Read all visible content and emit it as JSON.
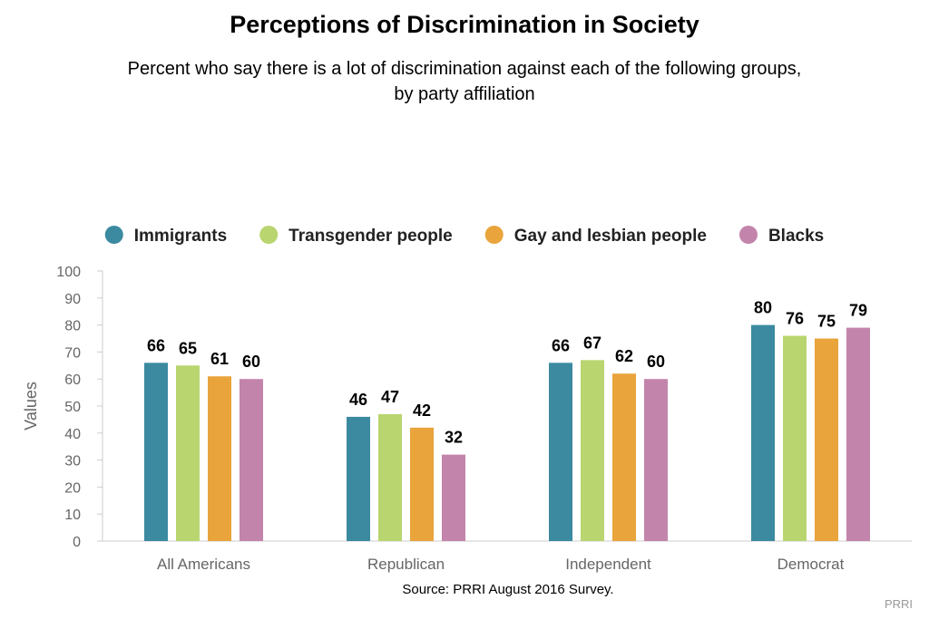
{
  "chart_data": {
    "type": "bar",
    "title": "Perceptions of Discrimination in Society",
    "subtitle": [
      "Percent who say there is a lot of discrimination against each of the following groups,",
      "by party affiliation"
    ],
    "categories": [
      "All Americans",
      "Republican",
      "Independent",
      "Democrat"
    ],
    "series": [
      {
        "name": "Immigrants",
        "color": "#3b8aa0",
        "values": [
          66,
          46,
          66,
          80
        ]
      },
      {
        "name": "Transgender people",
        "color": "#b9d56f",
        "values": [
          65,
          47,
          67,
          76
        ]
      },
      {
        "name": "Gay and lesbian people",
        "color": "#e9a43c",
        "values": [
          61,
          42,
          62,
          75
        ]
      },
      {
        "name": "Blacks",
        "color": "#c384ab",
        "values": [
          60,
          32,
          60,
          79
        ]
      }
    ],
    "ylabel": "Values",
    "ylim": [
      0,
      100
    ],
    "yticks": [
      0,
      10,
      20,
      30,
      40,
      50,
      60,
      70,
      80,
      90,
      100
    ],
    "legend_position": "top",
    "grid": false,
    "source": "Source: PRRI August 2016 Survey.",
    "credit": "PRRI"
  }
}
